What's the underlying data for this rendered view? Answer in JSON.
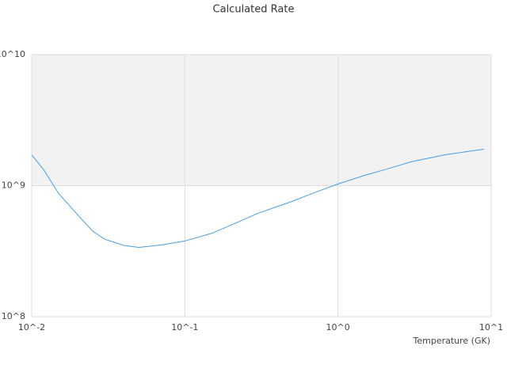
{
  "chart_data": {
    "type": "line",
    "title": "Calculated Rate",
    "x_label": "Temperature (GK)",
    "x": [
      0.01,
      0.012,
      0.015,
      0.02,
      0.025,
      0.03,
      0.04,
      0.05,
      0.07,
      0.1,
      0.15,
      0.2,
      0.3,
      0.5,
      0.7,
      1,
      1.5,
      2,
      3,
      5,
      9
    ],
    "series": [
      {
        "color": "#4a9de0",
        "values": [
          1720000000,
          1320000000,
          870000000,
          598000000,
          450000000,
          390000000,
          350000000,
          338000000,
          352000000,
          378000000,
          433000000,
          499000000,
          615000000,
          757000000,
          883000000,
          1030000000,
          1200000000,
          1320000000,
          1520000000,
          1720000000,
          1900000000
        ]
      }
    ],
    "xlim": [
      0.01,
      10
    ],
    "ylim": [
      100000000,
      10000000000
    ],
    "xticks": [
      {
        "value": 0.01,
        "label": "10^-2"
      },
      {
        "value": 0.1,
        "label": "10^-1"
      },
      {
        "value": 1,
        "label": "10^0"
      },
      {
        "value": 10,
        "label": "10^1"
      }
    ],
    "yticks": [
      {
        "value": 100000000,
        "label": "10^8"
      },
      {
        "value": 1000000000,
        "label": "10^9"
      },
      {
        "value": 10000000000,
        "label": "10^10"
      }
    ],
    "log_x": true,
    "log_y": true,
    "grid": true,
    "band_color": "#f2f2f2"
  }
}
